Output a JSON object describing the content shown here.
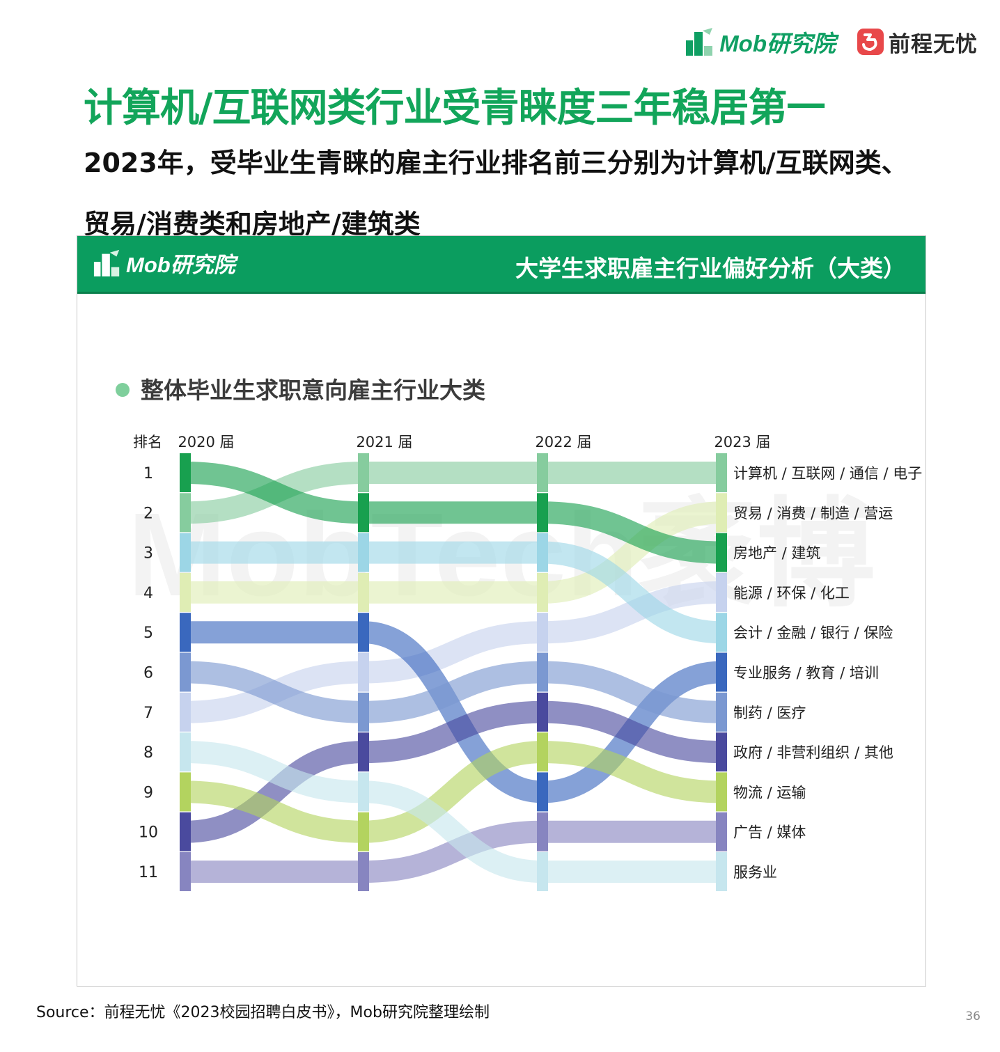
{
  "header": {
    "mob_logo_text": "Mob研究院",
    "qc_logo_text": "前程无忧"
  },
  "title": "计算机/互联网类行业受青睐度三年稳居第一",
  "subtitle": "2023年，受毕业生青睐的雇主行业排名前三分别为计算机/互联网类、贸易/消费类和房地产/建筑类",
  "panel": {
    "logo_text": "Mob研究院",
    "title": "大学生求职雇主行业偏好分析（大类）",
    "watermark": "MobTech袤博"
  },
  "chart_data": {
    "type": "bump",
    "title": "整体毕业生求职意向雇主行业大类",
    "rank_header": "排名",
    "years": [
      "2020 届",
      "2021 届",
      "2022 届",
      "2023 届"
    ],
    "ranks": [
      "1",
      "2",
      "3",
      "4",
      "5",
      "6",
      "7",
      "8",
      "9",
      "10",
      "11"
    ],
    "series": [
      {
        "name": "计算机 / 互联网 / 通信 / 电子",
        "color": "#86cc9e",
        "ranks": [
          2,
          1,
          1,
          1
        ]
      },
      {
        "name": "贸易 / 消费 / 制造 / 营运",
        "color": "#dfedb4",
        "ranks": [
          4,
          4,
          4,
          2
        ]
      },
      {
        "name": "房地产 / 建筑",
        "color": "#18a04f",
        "ranks": [
          1,
          2,
          2,
          3
        ]
      },
      {
        "name": "能源 / 环保 / 化工",
        "color": "#c6d2ee",
        "ranks": [
          7,
          6,
          5,
          4
        ]
      },
      {
        "name": "会计 / 金融 / 银行 / 保险",
        "color": "#9cd6e6",
        "ranks": [
          3,
          3,
          3,
          5
        ]
      },
      {
        "name": "专业服务 / 教育 / 培训",
        "color": "#3a68be",
        "ranks": [
          5,
          5,
          9,
          6
        ]
      },
      {
        "name": "制药 / 医疗",
        "color": "#7b98d1",
        "ranks": [
          6,
          7,
          6,
          7
        ]
      },
      {
        "name": "政府 / 非营利组织 / 其他",
        "color": "#4a4a9e",
        "ranks": [
          10,
          8,
          7,
          8
        ]
      },
      {
        "name": "物流 / 运输",
        "color": "#b3d35f",
        "ranks": [
          9,
          10,
          8,
          9
        ]
      },
      {
        "name": "广告 / 媒体",
        "color": "#8785c0",
        "ranks": [
          11,
          11,
          10,
          10
        ]
      },
      {
        "name": "服务业",
        "color": "#c6e6ee",
        "ranks": [
          8,
          9,
          11,
          11
        ]
      }
    ],
    "legend": "right"
  },
  "source": "Source：前程无忧《2023校园招聘白皮书》，Mob研究院整理绘制",
  "page_number": "36"
}
